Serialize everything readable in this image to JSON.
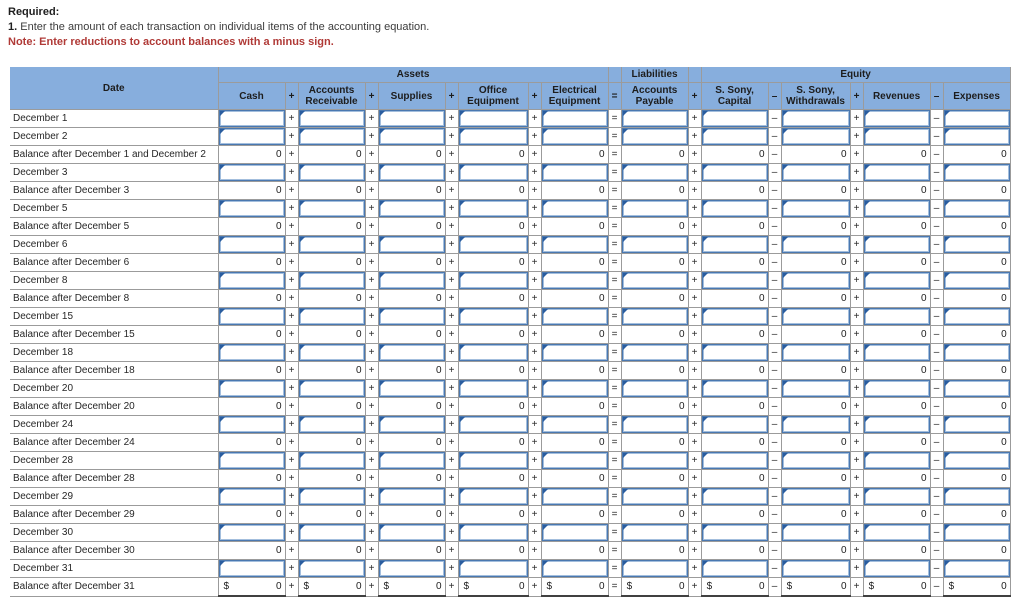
{
  "page": {
    "required_label": "Required:",
    "instruction_number": "1.",
    "instruction_text": " Enter the amount of each transaction on individual items of the accounting equation.",
    "note_text": "Note: Enter reductions to account balances with a minus sign."
  },
  "colors": {
    "header_bg": "#87aedd",
    "note_text": "#b03a37",
    "input_border": "#4a78b0",
    "input_border_inner": "#a3bedd",
    "cell_marker": "#2a5d9f",
    "grid_line": "#9b9b9b"
  },
  "table": {
    "date_header": "Date",
    "group_headers": {
      "assets": "Assets",
      "liabilities": "Liabilities",
      "equity": "Equity"
    },
    "columns": [
      {
        "label": "Cash",
        "op_after": "+"
      },
      {
        "label": "Accounts Receivable",
        "op_after": "+"
      },
      {
        "label": "Supplies",
        "op_after": "+"
      },
      {
        "label": "Office Equipment",
        "op_after": "+"
      },
      {
        "label": "Electrical Equipment",
        "op_after": "="
      },
      {
        "label": "Accounts Payable",
        "op_after": "+"
      },
      {
        "label": "S. Sony, Capital",
        "op_after": "–"
      },
      {
        "label": "S. Sony, Withdrawals",
        "op_after": "+"
      },
      {
        "label": "Revenues",
        "op_after": "–"
      },
      {
        "label": "Expenses",
        "op_after": ""
      }
    ],
    "rows": [
      {
        "label": "December 1",
        "type": "input"
      },
      {
        "label": "December 2",
        "type": "input"
      },
      {
        "label": "Balance after December 1 and December 2",
        "type": "balance",
        "value": "0"
      },
      {
        "label": "December 3",
        "type": "input"
      },
      {
        "label": "Balance after December 3",
        "type": "balance",
        "value": "0"
      },
      {
        "label": "December 5",
        "type": "input"
      },
      {
        "label": "Balance after December 5",
        "type": "balance",
        "value": "0"
      },
      {
        "label": "December 6",
        "type": "input"
      },
      {
        "label": "Balance after December 6",
        "type": "balance",
        "value": "0"
      },
      {
        "label": "December 8",
        "type": "input"
      },
      {
        "label": "Balance after December 8",
        "type": "balance",
        "value": "0"
      },
      {
        "label": "December 15",
        "type": "input"
      },
      {
        "label": "Balance after December 15",
        "type": "balance",
        "value": "0"
      },
      {
        "label": "December 18",
        "type": "input"
      },
      {
        "label": "Balance after December 18",
        "type": "balance",
        "value": "0"
      },
      {
        "label": "December 20",
        "type": "input"
      },
      {
        "label": "Balance after December 20",
        "type": "balance",
        "value": "0"
      },
      {
        "label": "December 24",
        "type": "input"
      },
      {
        "label": "Balance after December 24",
        "type": "balance",
        "value": "0"
      },
      {
        "label": "December 28",
        "type": "input"
      },
      {
        "label": "Balance after December 28",
        "type": "balance",
        "value": "0"
      },
      {
        "label": "December 29",
        "type": "input"
      },
      {
        "label": "Balance after December 29",
        "type": "balance",
        "value": "0"
      },
      {
        "label": "December 30",
        "type": "input"
      },
      {
        "label": "Balance after December 30",
        "type": "balance",
        "value": "0"
      },
      {
        "label": "December 31",
        "type": "input"
      },
      {
        "label": "Balance after December 31",
        "type": "balance",
        "value": "0",
        "currency": "$"
      }
    ]
  }
}
